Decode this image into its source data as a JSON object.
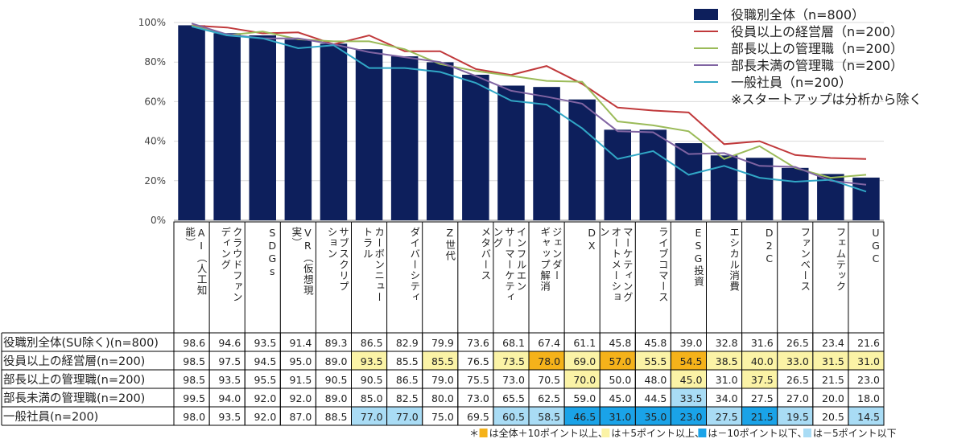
{
  "chart_data": {
    "type": "bar",
    "ylim": [
      0,
      100
    ],
    "yticks": [
      "0%",
      "20%",
      "40%",
      "60%",
      "80%",
      "100%"
    ],
    "categories": [
      "AI（人工知能）",
      "クラウドファンディング",
      "SDGs",
      "VR（仮想現実）",
      "サブスクリプション",
      "カーボンニュートラル",
      "ダイバーシティ",
      "Z世代",
      "メタバース",
      "インフルエンサーマーケティング",
      "ジェンダーギャップ解消",
      "DX",
      "マーケティングオートメーション",
      "ライブコマース",
      "ESG投資",
      "エシカル消費",
      "D2C",
      "ファンベース",
      "フェムテック",
      "UGC"
    ],
    "category_columns": [
      [
        "AI（人工知",
        "能）"
      ],
      [
        "クラウドファン",
        "ディング"
      ],
      [
        "SDGs"
      ],
      [
        "VR（仮想現",
        "実）"
      ],
      [
        "サブスクリプ",
        "ション"
      ],
      [
        "カーボンニュー",
        "トラル"
      ],
      [
        "ダイバーシティ"
      ],
      [
        "Z世代"
      ],
      [
        "メタバース"
      ],
      [
        "インフルエン",
        "サーマーケティ",
        "ング"
      ],
      [
        "ジェンダー",
        "ギャップ解消"
      ],
      [
        "DX"
      ],
      [
        "マーケティング",
        "オートメーショ",
        "ン"
      ],
      [
        "ライブコマース"
      ],
      [
        "ESG投資"
      ],
      [
        "エシカル消費"
      ],
      [
        "D2C"
      ],
      [
        "ファンベース"
      ],
      [
        "フェムテック"
      ],
      [
        "UGC"
      ]
    ],
    "series": [
      {
        "name": "役職別全体（n=800）",
        "row_label": "役職別全体(SU除く)(n=800)",
        "kind": "bar",
        "color": "#0d1f5c",
        "values": [
          98.6,
          94.6,
          93.5,
          91.4,
          89.3,
          86.5,
          82.9,
          79.9,
          73.6,
          68.1,
          67.4,
          61.1,
          45.8,
          45.8,
          39.0,
          32.8,
          31.6,
          26.5,
          23.4,
          21.6
        ]
      },
      {
        "name": "役員以上の経営層（n=200）",
        "row_label": "役員以上の経営層(n=200)",
        "kind": "line",
        "color": "#c0393b",
        "values": [
          98.5,
          97.5,
          94.5,
          95.0,
          89.0,
          93.5,
          85.5,
          85.5,
          76.5,
          73.5,
          78.0,
          69.0,
          57.0,
          55.5,
          54.5,
          38.5,
          40.0,
          33.0,
          31.5,
          31.0
        ]
      },
      {
        "name": "部長以上の管理職（n=200）",
        "row_label": "部長以上の管理職(n=200)",
        "kind": "line",
        "color": "#9bbb59",
        "values": [
          98.5,
          93.5,
          95.5,
          91.5,
          90.5,
          90.5,
          86.5,
          79.0,
          75.5,
          73.0,
          70.5,
          70.0,
          50.0,
          48.0,
          45.0,
          31.0,
          37.5,
          26.5,
          21.5,
          23.0
        ]
      },
      {
        "name": "部長未満の管理職（n=200）",
        "row_label": "部長未満の管理職(n=200)",
        "kind": "line",
        "color": "#8064a2",
        "values": [
          99.5,
          94.0,
          92.0,
          92.0,
          89.0,
          85.0,
          82.5,
          80.0,
          73.0,
          65.5,
          62.5,
          59.0,
          45.0,
          44.5,
          33.5,
          34.0,
          27.5,
          27.0,
          20.0,
          18.0
        ]
      },
      {
        "name": "一般社員（n=200）",
        "row_label": "一般社員(n=200)",
        "kind": "line",
        "color": "#31a7c6",
        "values": [
          98.0,
          93.5,
          92.0,
          87.0,
          88.5,
          77.0,
          77.0,
          75.0,
          69.5,
          60.5,
          58.5,
          46.5,
          31.0,
          35.0,
          23.0,
          27.5,
          21.5,
          19.5,
          20.5,
          14.5
        ]
      }
    ],
    "legend_note": "※スタートアップは分析から除く",
    "legend_position": "top-right",
    "highlight_colors": {
      "plus10": "#f5b21a",
      "plus5": "#fbf3a6",
      "minus10": "#1aa3e8",
      "minus5": "#a9dcf5"
    },
    "footnote": [
      {
        "text": "＊",
        "swatch": null
      },
      {
        "text": "は全体＋10ポイント以上、",
        "swatch": "plus10"
      },
      {
        "text": "は＋5ポイント以上、",
        "swatch": "plus5"
      },
      {
        "text": "は－10ポイント以下、",
        "swatch": "minus10"
      },
      {
        "text": "は－5ポイント以下",
        "swatch": "minus5"
      }
    ]
  }
}
